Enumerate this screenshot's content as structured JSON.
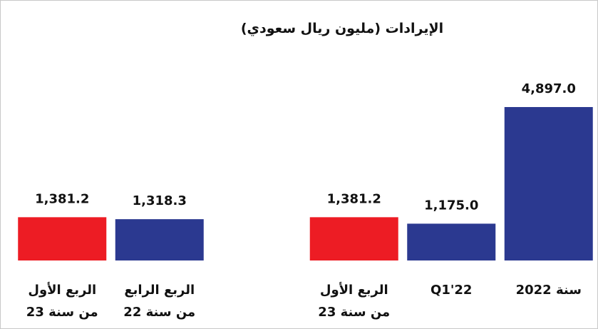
{
  "chart_data": {
    "type": "bar",
    "title": "الإيرادات (مليون ريال سعودي)",
    "categories": [
      "الربع الأول\nمن سنة 23",
      "الربع الرابع\nمن سنة 22",
      null,
      "الربع الأول\nمن سنة 23",
      "Q1'22",
      "سنة 2022"
    ],
    "values": [
      1381.2,
      1318.3,
      null,
      1381.2,
      1175.0,
      4897.0
    ],
    "value_labels": [
      "1,381.2",
      "1,318.3",
      null,
      "1,381.2",
      "1,175.0",
      "4,897.0"
    ],
    "colors": [
      "#ed1c24",
      "#2b3990",
      null,
      "#ed1c24",
      "#2b3990",
      "#2b3990"
    ]
  }
}
